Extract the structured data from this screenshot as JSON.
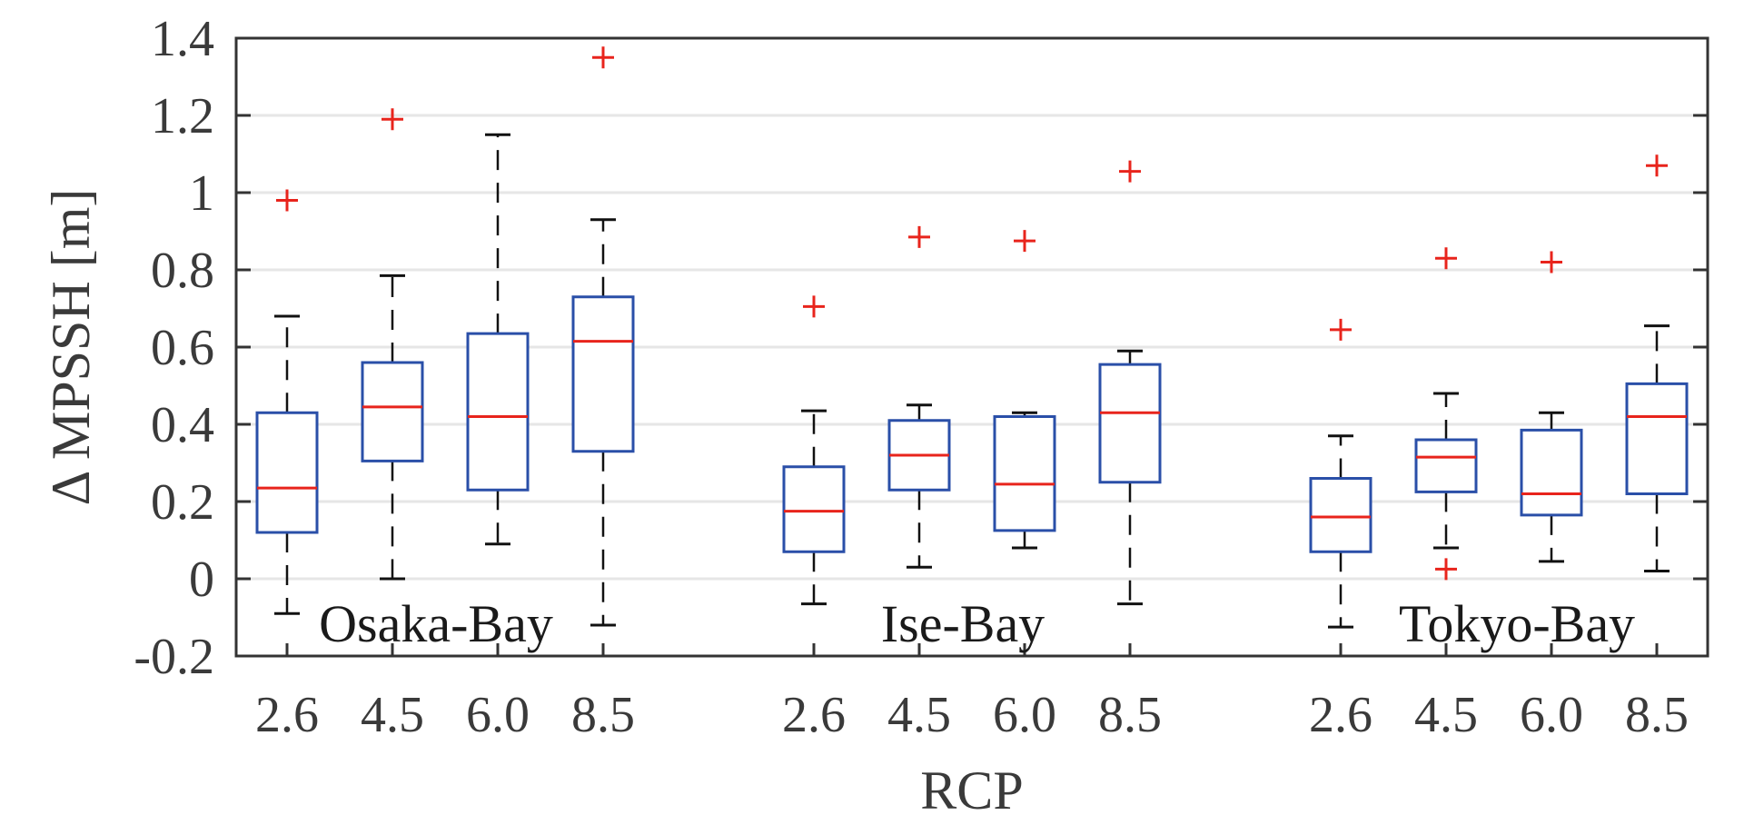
{
  "chart_data": {
    "type": "box",
    "xlabel": "RCP",
    "ylabel": "Δ MPSSH  [m]",
    "ylim": [
      -0.2,
      1.4
    ],
    "yticks": [
      "1.4",
      "1.2",
      "1",
      "0.8",
      "0.6",
      "0.4",
      "0.2",
      "0",
      "-0.2"
    ],
    "grid": "horizontal",
    "colors": {
      "box": "#2a4fa8",
      "median": "#e8241c",
      "whisker": "#111111",
      "outlier": "#e8241c",
      "grid": "#e6e6e6",
      "frame": "#333333"
    },
    "groups": [
      {
        "name": "Osaka-Bay",
        "boxes": [
          {
            "rcp": "2.6",
            "whisker_low": -0.09,
            "q1": 0.12,
            "median": 0.235,
            "q3": 0.43,
            "whisker_high": 0.68,
            "outliers": [
              0.98
            ]
          },
          {
            "rcp": "4.5",
            "whisker_low": 0.0,
            "q1": 0.305,
            "median": 0.445,
            "q3": 0.56,
            "whisker_high": 0.785,
            "outliers": [
              1.19
            ]
          },
          {
            "rcp": "6.0",
            "whisker_low": 0.09,
            "q1": 0.23,
            "median": 0.42,
            "q3": 0.635,
            "whisker_high": 1.15,
            "outliers": []
          },
          {
            "rcp": "8.5",
            "whisker_low": -0.12,
            "q1": 0.33,
            "median": 0.615,
            "q3": 0.73,
            "whisker_high": 0.93,
            "outliers": [
              1.35
            ]
          }
        ]
      },
      {
        "name": "Ise-Bay",
        "boxes": [
          {
            "rcp": "2.6",
            "whisker_low": -0.065,
            "q1": 0.07,
            "median": 0.175,
            "q3": 0.29,
            "whisker_high": 0.435,
            "outliers": [
              0.705
            ]
          },
          {
            "rcp": "4.5",
            "whisker_low": 0.03,
            "q1": 0.23,
            "median": 0.32,
            "q3": 0.41,
            "whisker_high": 0.45,
            "outliers": [
              0.885
            ]
          },
          {
            "rcp": "6.0",
            "whisker_low": 0.08,
            "q1": 0.125,
            "median": 0.245,
            "q3": 0.42,
            "whisker_high": 0.43,
            "outliers": [
              0.875
            ]
          },
          {
            "rcp": "8.5",
            "whisker_low": -0.065,
            "q1": 0.25,
            "median": 0.43,
            "q3": 0.555,
            "whisker_high": 0.59,
            "outliers": [
              1.055
            ]
          }
        ]
      },
      {
        "name": "Tokyo-Bay",
        "boxes": [
          {
            "rcp": "2.6",
            "whisker_low": -0.125,
            "q1": 0.07,
            "median": 0.16,
            "q3": 0.26,
            "whisker_high": 0.37,
            "outliers": [
              0.645
            ]
          },
          {
            "rcp": "4.5",
            "whisker_low": 0.08,
            "q1": 0.225,
            "median": 0.315,
            "q3": 0.36,
            "whisker_high": 0.48,
            "outliers": [
              0.83,
              0.025
            ]
          },
          {
            "rcp": "6.0",
            "whisker_low": 0.045,
            "q1": 0.165,
            "median": 0.22,
            "q3": 0.385,
            "whisker_high": 0.43,
            "outliers": [
              0.82
            ]
          },
          {
            "rcp": "8.5",
            "whisker_low": 0.02,
            "q1": 0.22,
            "median": 0.42,
            "q3": 0.505,
            "whisker_high": 0.655,
            "outliers": [
              1.07
            ]
          }
        ]
      }
    ]
  }
}
